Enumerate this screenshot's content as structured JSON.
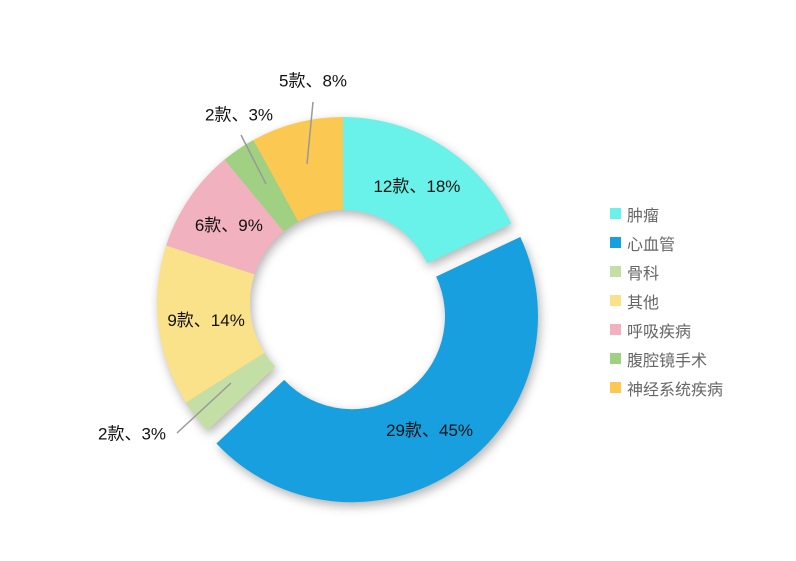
{
  "styles": {
    "background": "#FFFFFF",
    "data_label_color": "#111111",
    "legend_text_color": "#666666",
    "leader_line_color": "#999999"
  },
  "chart_data": {
    "type": "pie",
    "subtype": "donut",
    "donut_hole_ratio": 0.5,
    "start_angle_deg": 0,
    "direction": "clockwise",
    "grid": false,
    "legend_position": "right",
    "slices": [
      {
        "name": "肿瘤",
        "count": 12,
        "percent": 18,
        "label": "12款、18%",
        "color": "#68F2E9",
        "label_position": "inside",
        "exploded": false
      },
      {
        "name": "心血管",
        "count": 29,
        "percent": 45,
        "label": "29款、45%",
        "color": "#189FDF",
        "label_position": "inside",
        "exploded": true
      },
      {
        "name": "骨科",
        "count": 2,
        "percent": 3,
        "label": "2款、3%",
        "color": "#C4DFA5",
        "label_position": "outside",
        "exploded": false
      },
      {
        "name": "其他",
        "count": 9,
        "percent": 14,
        "label": "9款、14%",
        "color": "#FAE28A",
        "label_position": "inside",
        "exploded": false
      },
      {
        "name": "呼吸疾病",
        "count": 6,
        "percent": 9,
        "label": "6款、9%",
        "color": "#F2B1BE",
        "label_position": "inside",
        "exploded": false
      },
      {
        "name": "腹腔镜手术",
        "count": 2,
        "percent": 3,
        "label": "2款、3%",
        "color": "#A0D182",
        "label_position": "outside",
        "exploded": false
      },
      {
        "name": "神经系统疾病",
        "count": 5,
        "percent": 8,
        "label": "5款、8%",
        "color": "#FBC852",
        "label_position": "outside",
        "exploded": false
      }
    ],
    "legend": [
      "肿瘤",
      "心血管",
      "骨科",
      "其他",
      "呼吸疾病",
      "腹腔镜手术",
      "神经系统疾病"
    ]
  }
}
